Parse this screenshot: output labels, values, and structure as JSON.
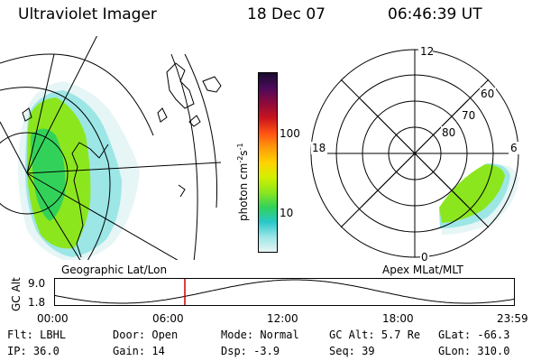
{
  "header": {
    "title": "Ultraviolet Imager",
    "date": "18 Dec 07",
    "time": "06:46:39 UT"
  },
  "geo_panel": {
    "label": "Geographic Lat/Lon"
  },
  "colorbar": {
    "unit_label": "photon cm",
    "unit_exp1": "-2",
    "unit_s": "s",
    "unit_exp2": "-1",
    "tick_100": "100",
    "tick_10": "10",
    "colors": [
      "#1a0a2e",
      "#4b0a5a",
      "#8c0a3c",
      "#c8141e",
      "#ff5014",
      "#ff9b0a",
      "#ffd200",
      "#d2f000",
      "#8ce61e",
      "#32d25a",
      "#28c8c8",
      "#9ce6e6",
      "#e6f5f5"
    ]
  },
  "polar_panel": {
    "label": "Apex MLat/MLT",
    "mlt_12": "12",
    "mlt_18": "18",
    "mlt_6": "6",
    "mlt_0": "0",
    "lat_60": "60",
    "lat_70": "70",
    "lat_80": "80"
  },
  "orbit_plot": {
    "ylabel": "GC Alt",
    "ytick_top": "9.0",
    "ytick_bottom": "1.8",
    "xticks": [
      "00:00",
      "06:00",
      "12:00",
      "18:00",
      "23:59"
    ],
    "marker_time": "06:46:39",
    "line_color": "#000000",
    "marker_color": "#cc0000"
  },
  "status": {
    "filter_key": "Flt:",
    "filter_val": "LBHL",
    "door_key": "Door:",
    "door_val": "Open",
    "mode_key": "Mode:",
    "mode_val": "Normal",
    "gcalt_key": "GC Alt:",
    "gcalt_val": "5.7 Re",
    "glat_key": "GLat:",
    "glat_val": "-66.3",
    "ip_key": "IP:",
    "ip_val": "36.0",
    "gain_key": "Gain:",
    "gain_val": "14",
    "dsp_key": "Dsp:",
    "dsp_val": "-3.9",
    "seq_key": "Seq:",
    "seq_val": "39",
    "glon_key": "GLon:",
    "glon_val": "310.0"
  }
}
